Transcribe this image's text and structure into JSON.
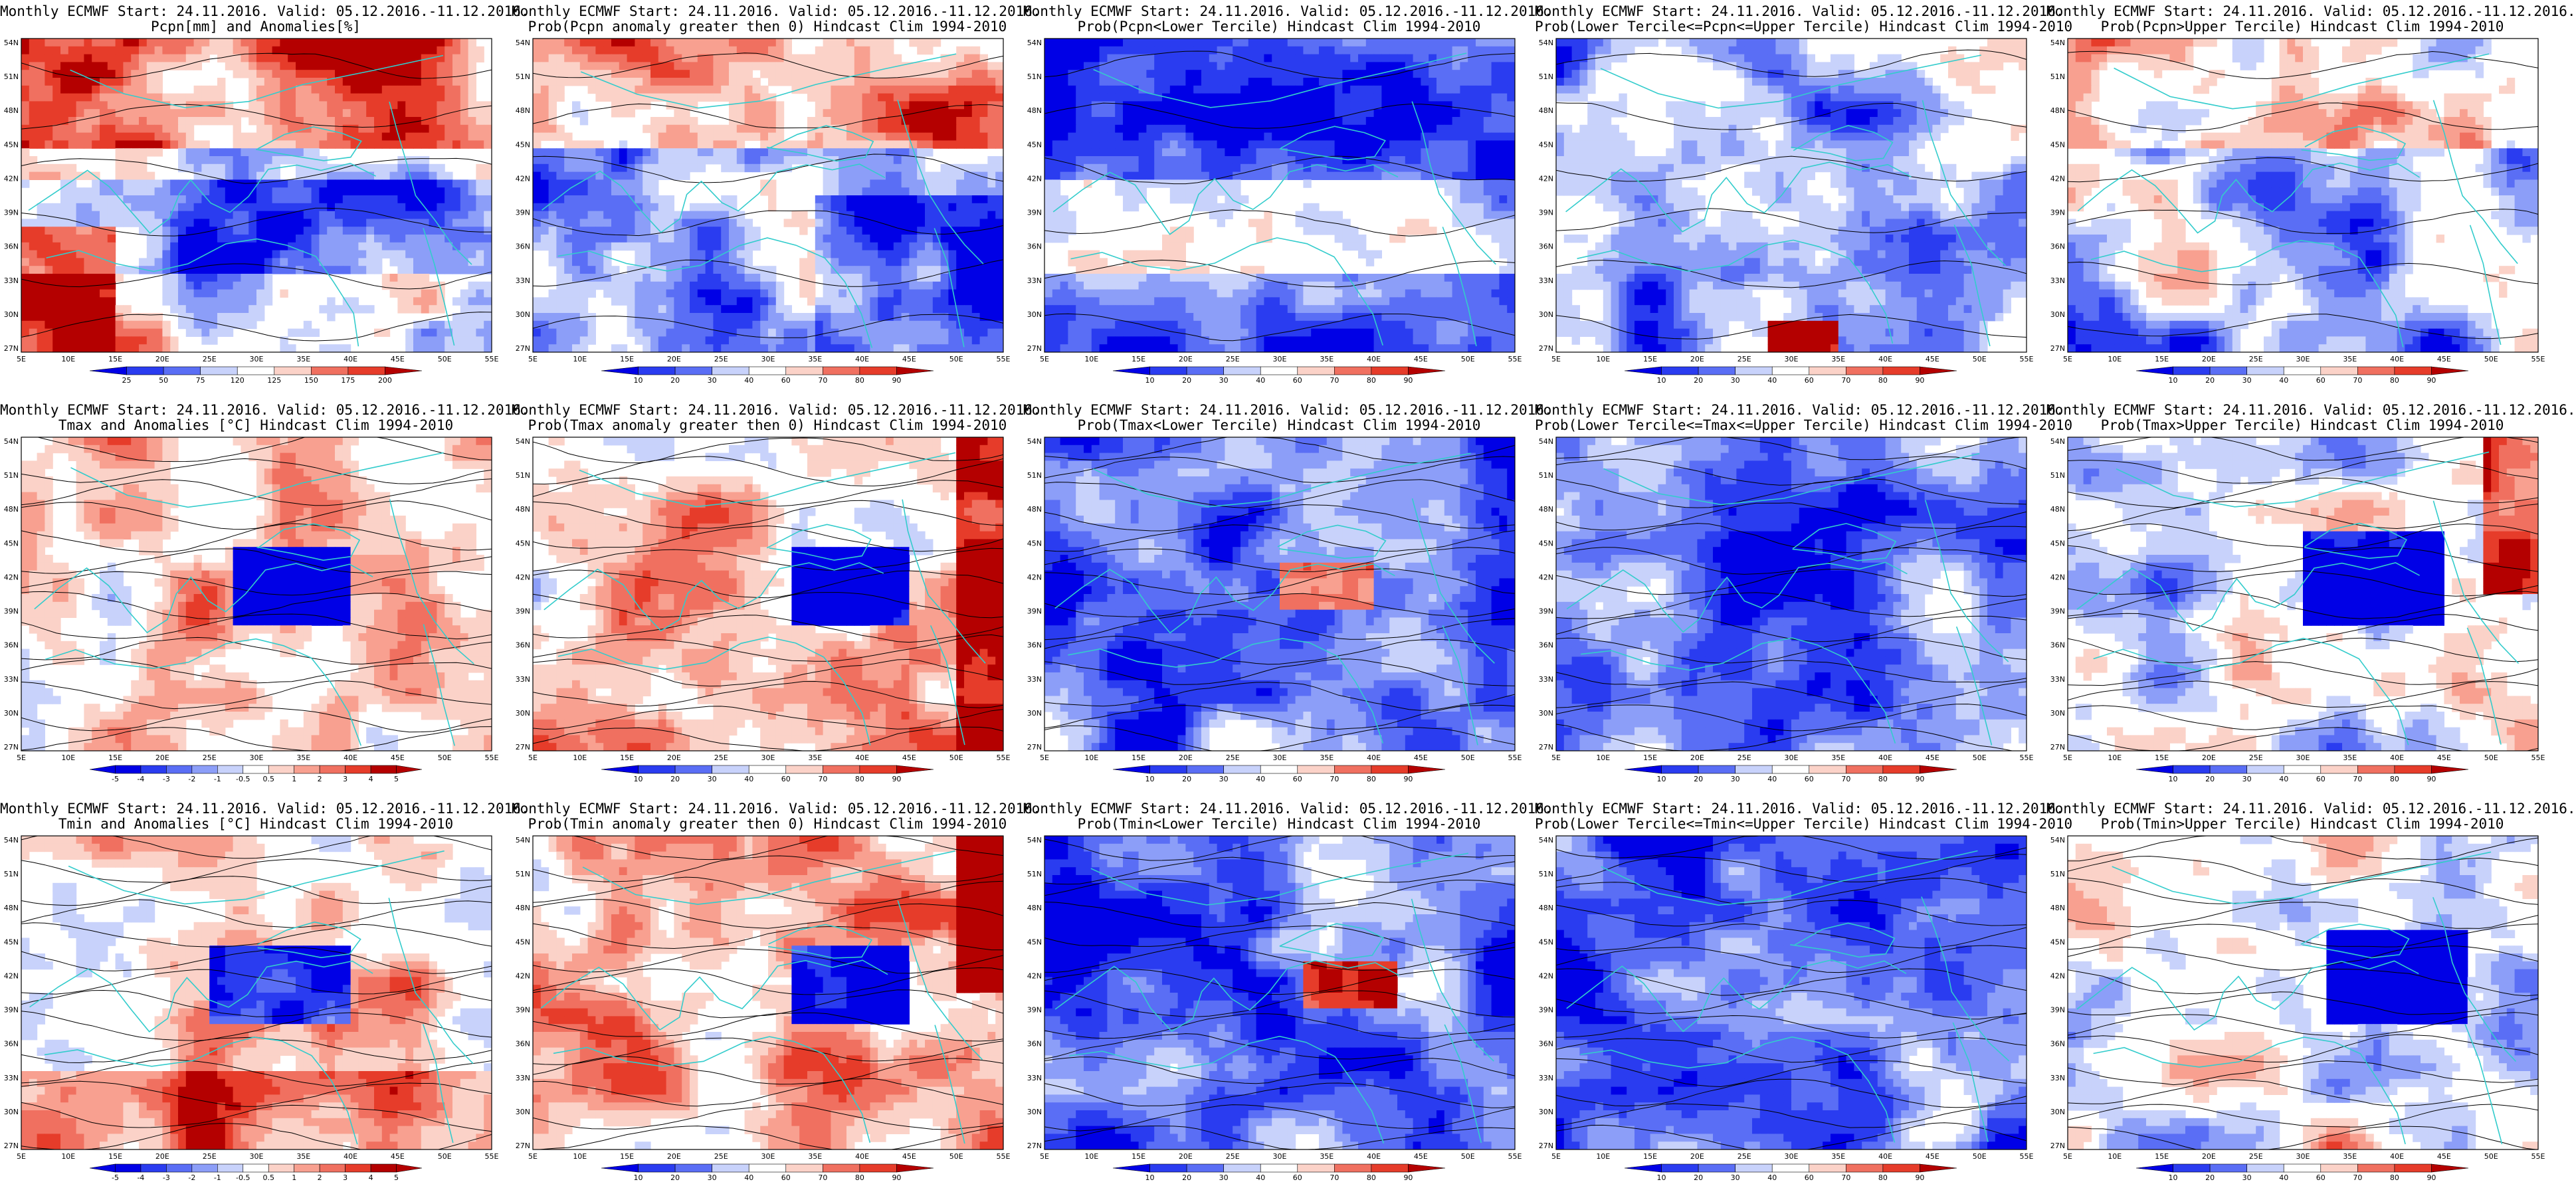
{
  "panels": [
    {
      "title1": "Monthly ECMWF Start: 24.11.2016. Valid: 05.12.2016.-11.12.2016.",
      "title2": "Pcpn[mm] and Anomalies[%]",
      "kind": "anom_pcpn",
      "colorbar": [
        "25",
        "50",
        "75",
        "120",
        "125",
        "150",
        "175",
        "200"
      ]
    },
    {
      "title1": "Monthly ECMWF Start: 24.11.2016. Valid: 05.12.2016.-11.12.2016.",
      "title2": "Prob(Pcpn anomaly greater then 0) Hindcast Clim 1994-2010",
      "kind": "prob_above",
      "colorbar": [
        "10",
        "20",
        "30",
        "40",
        "60",
        "70",
        "80",
        "90"
      ]
    },
    {
      "title1": "Monthly ECMWF Start: 24.11.2016. Valid: 05.12.2016.-11.12.2016.",
      "title2": "Prob(Pcpn<Lower Tercile) Hindcast Clim 1994-2010",
      "kind": "prob_low",
      "colorbar": [
        "10",
        "20",
        "30",
        "40",
        "60",
        "70",
        "80",
        "90"
      ]
    },
    {
      "title1": "Monthly ECMWF Start: 24.11.2016. Valid: 05.12.2016.-11.12.2016.",
      "title2": "Prob(Lower Tercile<=Pcpn<=Upper Tercile) Hindcast Clim 1994-2010",
      "kind": "prob_mid",
      "colorbar": [
        "10",
        "20",
        "30",
        "40",
        "60",
        "70",
        "80",
        "90"
      ]
    },
    {
      "title1": "Monthly ECMWF Start: 24.11.2016. Valid: 05.12.2016.-11.12.2016.",
      "title2": "Prob(Pcpn>Upper Tercile) Hindcast Clim 1994-2010",
      "kind": "prob_up",
      "colorbar": [
        "10",
        "20",
        "30",
        "40",
        "60",
        "70",
        "80",
        "90"
      ]
    },
    {
      "title1": "Monthly ECMWF Start: 24.11.2016. Valid: 05.12.2016.-11.12.2016.",
      "title2": "Tmax and Anomalies [°C] Hindcast Clim 1994-2010",
      "kind": "anom_t",
      "colorbar": [
        "-5",
        "-4",
        "-3",
        "-2",
        "-1",
        "-0.5",
        "0.5",
        "1",
        "2",
        "3",
        "4",
        "5"
      ]
    },
    {
      "title1": "Monthly ECMWF Start: 24.11.2016. Valid: 05.12.2016.-11.12.2016.",
      "title2": "Prob(Tmax anomaly greater then 0) Hindcast Clim 1994-2010",
      "kind": "prob_above_t",
      "colorbar": [
        "10",
        "20",
        "30",
        "40",
        "60",
        "70",
        "80",
        "90"
      ]
    },
    {
      "title1": "Monthly ECMWF Start: 24.11.2016. Valid: 05.12.2016.-11.12.2016.",
      "title2": "Prob(Tmax<Lower Tercile) Hindcast Clim 1994-2010",
      "kind": "prob_low_t",
      "colorbar": [
        "10",
        "20",
        "30",
        "40",
        "60",
        "70",
        "80",
        "90"
      ]
    },
    {
      "title1": "Monthly ECMWF Start: 24.11.2016. Valid: 05.12.2016.-11.12.2016.",
      "title2": "Prob(Lower Tercile<=Tmax<=Upper Tercile) Hindcast Clim 1994-2010",
      "kind": "prob_mid_t",
      "colorbar": [
        "10",
        "20",
        "30",
        "40",
        "60",
        "70",
        "80",
        "90"
      ]
    },
    {
      "title1": "Monthly ECMWF Start: 24.11.2016. Valid: 05.12.2016.-11.12.2016.",
      "title2": "Prob(Tmax>Upper Tercile) Hindcast Clim 1994-2010",
      "kind": "prob_up_t",
      "colorbar": [
        "10",
        "20",
        "30",
        "40",
        "60",
        "70",
        "80",
        "90"
      ]
    },
    {
      "title1": "Monthly ECMWF Start: 24.11.2016. Valid: 05.12.2016.-11.12.2016.",
      "title2": "Tmin and Anomalies [°C] Hindcast Clim 1994-2010",
      "kind": "anom_t2",
      "colorbar": [
        "-5",
        "-4",
        "-3",
        "-2",
        "-1",
        "-0.5",
        "0.5",
        "1",
        "2",
        "3",
        "4",
        "5"
      ]
    },
    {
      "title1": "Monthly ECMWF Start: 24.11.2016. Valid: 05.12.2016.-11.12.2016.",
      "title2": "Prob(Tmin anomaly greater then 0) Hindcast Clim 1994-2010",
      "kind": "prob_above_t2",
      "colorbar": [
        "10",
        "20",
        "30",
        "40",
        "60",
        "70",
        "80",
        "90"
      ]
    },
    {
      "title1": "Monthly ECMWF Start: 24.11.2016. Valid: 05.12.2016.-11.12.2016.",
      "title2": "Prob(Tmin<Lower Tercile) Hindcast Clim 1994-2010",
      "kind": "prob_low_t2",
      "colorbar": [
        "10",
        "20",
        "30",
        "40",
        "60",
        "70",
        "80",
        "90"
      ]
    },
    {
      "title1": "Monthly ECMWF Start: 24.11.2016. Valid: 05.12.2016.-11.12.2016.",
      "title2": "Prob(Lower Tercile<=Tmin<=Upper Tercile) Hindcast Clim 1994-2010",
      "kind": "prob_mid_t2",
      "colorbar": [
        "10",
        "20",
        "30",
        "40",
        "60",
        "70",
        "80",
        "90"
      ]
    },
    {
      "title1": "Monthly ECMWF Start: 24.11.2016. Valid: 05.12.2016.-11.12.2016.",
      "title2": "Prob(Tmin>Upper Tercile) Hindcast Clim 1994-2010",
      "kind": "prob_up_t2",
      "colorbar": [
        "10",
        "20",
        "30",
        "40",
        "60",
        "70",
        "80",
        "90"
      ]
    }
  ],
  "axes": {
    "lat_labels": [
      "54N",
      "51N",
      "48N",
      "45N",
      "42N",
      "39N",
      "36N",
      "33N",
      "30N",
      "27N"
    ],
    "lon_labels": [
      "5E",
      "10E",
      "15E",
      "20E",
      "25E",
      "30E",
      "35E",
      "40E",
      "45E",
      "50E",
      "55E"
    ]
  },
  "colors": {
    "blue_scale": [
      "#0000e6",
      "#2a3cf0",
      "#5a6ef5",
      "#8c9ef8",
      "#c8d2fb",
      "#ffffff"
    ],
    "red_scale": [
      "#ffffff",
      "#fbd2c8",
      "#f8a090",
      "#f07060",
      "#e63c2a",
      "#b40000"
    ],
    "coast": "#33cccc",
    "contour": "#000000"
  }
}
